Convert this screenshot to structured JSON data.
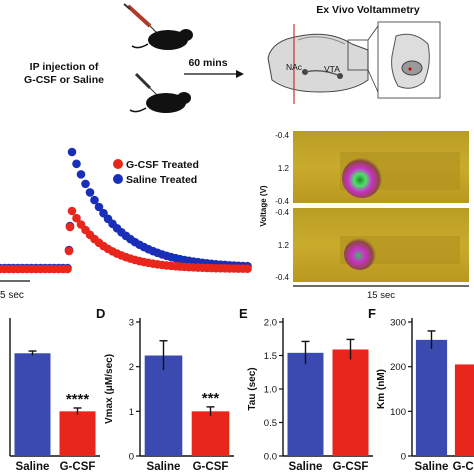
{
  "schematic": {
    "injection_label_1": "IP injection of",
    "injection_label_2": "G-CSF or Saline",
    "time_label": "60 mins",
    "voltammetry_title": "Ex Vivo Voltammetry",
    "nac_label": "NAc",
    "vta_label": "VTA"
  },
  "trace_panel": {
    "legend": [
      "G-CSF Treated",
      "Saline Treated"
    ],
    "scale_label": "5 sec",
    "colors": {
      "gcsf": "#e8261c",
      "saline": "#1a2fb8"
    }
  },
  "color_plot": {
    "ylabel": "Voltage (V)",
    "ticks": [
      "-0.4",
      "1.2",
      "-0.4"
    ],
    "xlabel": "15 sec"
  },
  "chart_data": [
    {
      "type": "bar",
      "panel": "",
      "ylabel": "",
      "categories": [
        "Saline",
        "G-CSF"
      ],
      "values": [
        92,
        40
      ],
      "errors": [
        2,
        3
      ],
      "ylim": [
        0,
        120
      ],
      "ticks": [],
      "significance": "****",
      "colors": [
        "#3a4ab0",
        "#e8261c"
      ]
    },
    {
      "type": "bar",
      "panel": "D",
      "ylabel": "Vmax (μM/sec)",
      "categories": [
        "Saline",
        "G-CSF"
      ],
      "values": [
        2.25,
        1.0
      ],
      "errors": [
        0.33,
        0.1
      ],
      "ylim": [
        0,
        3
      ],
      "ticks": [
        "0",
        "1",
        "2",
        "3"
      ],
      "significance": "***",
      "colors": [
        "#3a4ab0",
        "#e8261c"
      ]
    },
    {
      "type": "bar",
      "panel": "E",
      "ylabel": "Tau (sec)",
      "categories": [
        "Saline",
        "G-CSF"
      ],
      "values": [
        1.54,
        1.59
      ],
      "errors": [
        0.17,
        0.15
      ],
      "ylim": [
        0,
        2.0
      ],
      "ticks": [
        "0.0",
        "0.5",
        "1.0",
        "1.5",
        "2.0"
      ],
      "significance": "",
      "colors": [
        "#3a4ab0",
        "#e8261c"
      ]
    },
    {
      "type": "bar",
      "panel": "F",
      "ylabel": "Km (nM)",
      "categories": [
        "Saline",
        "G-CSF"
      ],
      "values": [
        260,
        205
      ],
      "errors": [
        20,
        0
      ],
      "ylim": [
        0,
        300
      ],
      "ticks": [
        "0",
        "100",
        "200",
        "300"
      ],
      "significance": "",
      "colors": [
        "#3a4ab0",
        "#e8261c"
      ]
    }
  ]
}
